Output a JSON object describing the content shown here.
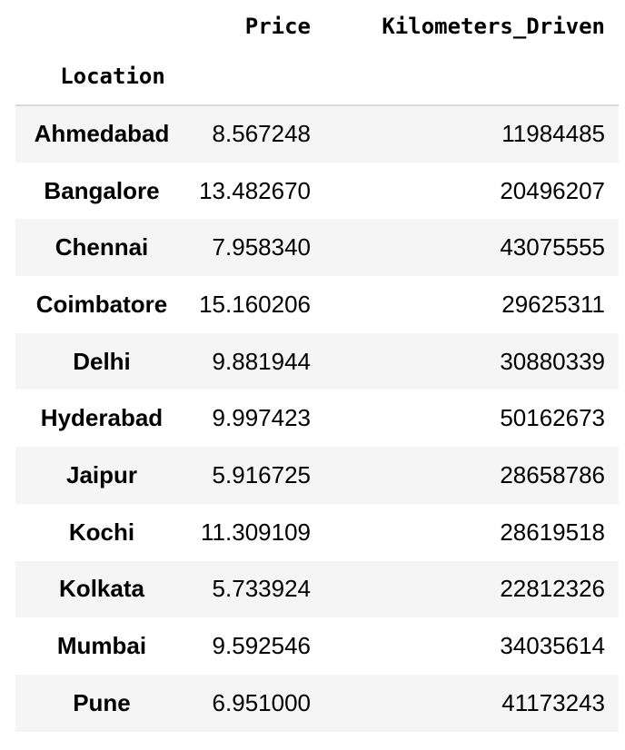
{
  "table": {
    "columns": [
      "Price",
      "Kilometers_Driven"
    ],
    "index_name": "Location",
    "rows": [
      {
        "location": "Ahmedabad",
        "price": "8.567248",
        "km": "11984485"
      },
      {
        "location": "Bangalore",
        "price": "13.482670",
        "km": "20496207"
      },
      {
        "location": "Chennai",
        "price": "7.958340",
        "km": "43075555"
      },
      {
        "location": "Coimbatore",
        "price": "15.160206",
        "km": "29625311"
      },
      {
        "location": "Delhi",
        "price": "9.881944",
        "km": "30880339"
      },
      {
        "location": "Hyderabad",
        "price": "9.997423",
        "km": "50162673"
      },
      {
        "location": "Jaipur",
        "price": "5.916725",
        "km": "28658786"
      },
      {
        "location": "Kochi",
        "price": "11.309109",
        "km": "28619518"
      },
      {
        "location": "Kolkata",
        "price": "5.733924",
        "km": "22812326"
      },
      {
        "location": "Mumbai",
        "price": "9.592546",
        "km": "34035614"
      },
      {
        "location": "Pune",
        "price": "6.951000",
        "km": "41173243"
      }
    ]
  },
  "colors": {
    "row_stripe": "#f5f5f5",
    "header_rule": "#d9d9d9",
    "text": "#000000"
  }
}
